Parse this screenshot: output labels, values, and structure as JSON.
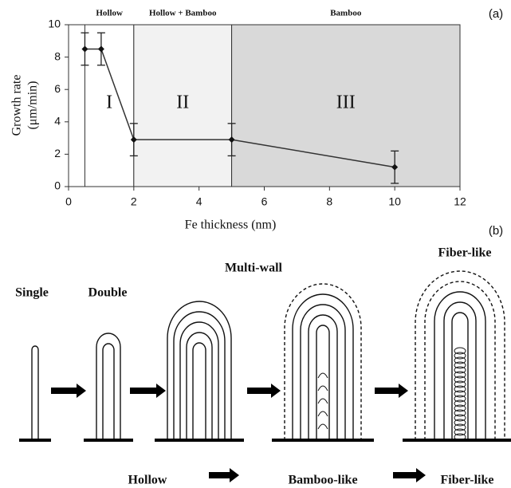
{
  "chart_data": {
    "type": "line",
    "xlabel": "Fe thickness (nm)",
    "ylabel": [
      "Growth rate",
      "(μm/min)"
    ],
    "panel_label": "(a)",
    "x": [
      0.5,
      1,
      2,
      5,
      10
    ],
    "values": [
      8.5,
      8.5,
      2.9,
      2.9,
      1.2
    ],
    "errors": [
      1.0,
      1.0,
      1.0,
      1.0,
      1.0
    ],
    "color": "#333333",
    "xlim": [
      0,
      12
    ],
    "xticks": [
      0,
      2,
      4,
      6,
      8,
      10,
      12
    ],
    "ylim": [
      0,
      10
    ],
    "yticks": [
      0,
      2,
      4,
      6,
      8,
      10
    ],
    "regions": [
      {
        "header": "Hollow",
        "label": "I",
        "start": 0.5,
        "end": 2,
        "color": "#ffffff"
      },
      {
        "header": "Hollow + Bamboo",
        "label": "II",
        "start": 2,
        "end": 5,
        "color": "#f2f2f2"
      },
      {
        "header": "Bamboo",
        "label": "III",
        "start": 5,
        "end": 12,
        "color": "#d9d9d9"
      }
    ]
  },
  "diagram": {
    "panel_label": "(b)",
    "stages": [
      "Single",
      "Double",
      "Multi-wall",
      "Fiber-like"
    ],
    "types": [
      "Hollow",
      "Bamboo-like",
      "Fiber-like"
    ]
  }
}
